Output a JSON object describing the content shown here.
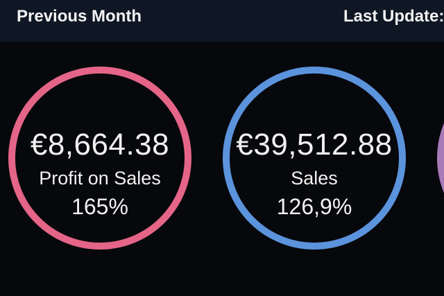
{
  "header": {
    "title": "Previous Month",
    "last_update_label": "Last Update:"
  },
  "kpis": [
    {
      "value": "€8,664.38",
      "label": "Profit on Sales",
      "percent": "165%",
      "ring_color": "#e46587"
    },
    {
      "value": "€39,512.88",
      "label": "Sales",
      "percent": "126,9%",
      "ring_color": "#5b93dc"
    },
    {
      "value": "",
      "label": "",
      "percent": "",
      "ring_color": "#a77bb8"
    }
  ]
}
